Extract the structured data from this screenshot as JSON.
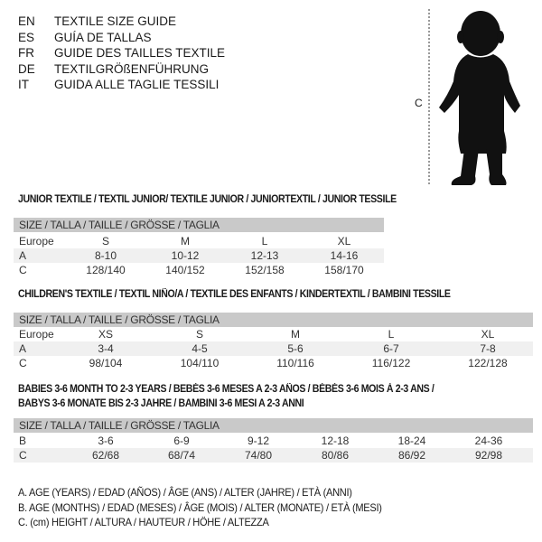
{
  "header": {
    "languages": [
      {
        "code": "EN",
        "title": "TEXTILE SIZE GUIDE"
      },
      {
        "code": "ES",
        "title": "GUÍA DE TALLAS"
      },
      {
        "code": "FR",
        "title": "GUIDE DES TAILLES TEXTILE"
      },
      {
        "code": "DE",
        "title": "TEXTILGRÖßENFÜHRUNG"
      },
      {
        "code": "IT",
        "title": "GUIDA ALLE TAGLIE TESSILI"
      }
    ],
    "figure_label": "C"
  },
  "junior": {
    "title": "JUNIOR TEXTILE / TEXTIL JUNIOR/ TEXTILE JUNIOR / JUNIORTEXTIL / JUNIOR TESSILE",
    "size_header": "SIZE / TALLA / TAILLE / GRÖSSE / TAGLIA",
    "rows": [
      {
        "label": "Europe",
        "values": [
          "S",
          "M",
          "L",
          "XL"
        ]
      },
      {
        "label": "A",
        "values": [
          "8-10",
          "10-12",
          "12-13",
          "14-16"
        ]
      },
      {
        "label": "C",
        "values": [
          "128/140",
          "140/152",
          "152/158",
          "158/170"
        ]
      }
    ]
  },
  "children": {
    "title": "CHILDREN'S TEXTILE / TEXTIL NIÑO/A / TEXTILE DES ENFANTS / KINDERTEXTIL / BAMBINI TESSILE",
    "size_header": "SIZE / TALLA / TAILLE / GRÖSSE / TAGLIA",
    "rows": [
      {
        "label": "Europe",
        "values": [
          "XS",
          "S",
          "M",
          "L",
          "XL"
        ]
      },
      {
        "label": "A",
        "values": [
          "3-4",
          "4-5",
          "5-6",
          "6-7",
          "7-8"
        ]
      },
      {
        "label": "C",
        "values": [
          "98/104",
          "104/110",
          "110/116",
          "116/122",
          "122/128"
        ]
      }
    ]
  },
  "babies": {
    "title_line1": "BABIES 3-6 MONTH TO 2-3 YEARS / BEBÉS 3-6 MESES A 2-3 AÑOS / BÉBÉS 3-6 MOIS À 2-3 ANS /",
    "title_line2": "BABYS 3-6 MONATE BIS 2-3 JAHRE / BAMBINI 3-6 MESI A 2-3 ANNI",
    "size_header": "SIZE / TALLA / TAILLE / GRÖSSE / TAGLIA",
    "rows": [
      {
        "label": "B",
        "values": [
          "3-6",
          "6-9",
          "9-12",
          "12-18",
          "18-24",
          "24-36"
        ]
      },
      {
        "label": "C",
        "values": [
          "62/68",
          "68/74",
          "74/80",
          "80/86",
          "86/92",
          "92/98"
        ]
      }
    ]
  },
  "legend": [
    "A. AGE (YEARS) / EDAD (AÑOS) / ÂGE (ANS) / ALTER (JAHRE) / ETÀ (ANNI)",
    "B. AGE (MONTHS) / EDAD (MESES) / ÂGE (MOIS) / ALTER (MONATE) / ETÀ (MESI)",
    "C. (cm) HEIGHT / ALTURA / HAUTEUR / HÖHE / ALTEZZA"
  ]
}
